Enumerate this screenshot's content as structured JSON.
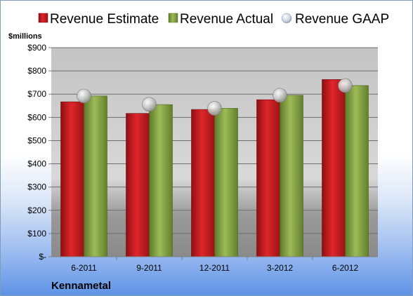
{
  "chart_data": {
    "type": "bar",
    "title": "",
    "company": "Kennametal",
    "ylabel": "$millions",
    "xlabel": "",
    "ylim": [
      0,
      900
    ],
    "yticks": [
      0,
      100,
      200,
      300,
      400,
      500,
      600,
      700,
      800,
      900
    ],
    "ytick_labels": [
      "$-",
      "$100",
      "$200",
      "$300",
      "$400",
      "$500",
      "$600",
      "$700",
      "$800",
      "$900"
    ],
    "categories": [
      "6-2011",
      "9-2011",
      "12-2011",
      "3-2012",
      "6-2012"
    ],
    "legend_position": "top",
    "grid": true,
    "series": [
      {
        "name": "Revenue Estimate",
        "kind": "bar",
        "color": "#cc2024",
        "values": [
          667,
          617,
          634,
          676,
          763
        ]
      },
      {
        "name": "Revenue Actual",
        "kind": "bar",
        "color": "#8cac48",
        "values": [
          692,
          655,
          639,
          695,
          737
        ]
      },
      {
        "name": "Revenue GAAP",
        "kind": "marker",
        "color": "#b8b8b8",
        "values": [
          692,
          656,
          639,
          695,
          737
        ]
      }
    ]
  }
}
